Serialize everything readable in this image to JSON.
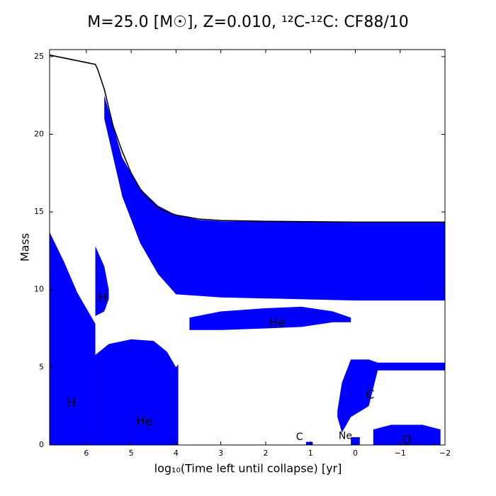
{
  "chart_data": {
    "type": "kippenhahn",
    "title": "M=25.0 [M☉], Z=0.010, ¹²C-¹²C: CF88/10",
    "xlabel": "log₁₀(Time left until collapse) [yr]",
    "ylabel": "Mass",
    "xlim": [
      6.82,
      -2
    ],
    "ylim": [
      0,
      25.45
    ],
    "xticks": [
      6,
      5,
      4,
      3,
      2,
      1,
      0,
      {
        "value": -1,
        "label": "−1"
      },
      {
        "value": -2,
        "label": "−2"
      }
    ],
    "yticks": [
      0,
      5,
      10,
      15,
      20,
      25
    ],
    "region_color": "#0000ff",
    "regions": [
      {
        "label": "H",
        "label_color": "#ffffff",
        "x": [
          6.82,
          6.5,
          6.2,
          5.8
        ],
        "upper": [
          13.7,
          11.8,
          9.8,
          7.8
        ],
        "lower": [
          0,
          0,
          0,
          0
        ]
      },
      {
        "label": "He",
        "label_color": "#ffffff",
        "x": [
          5.8,
          5.5,
          5.0,
          4.5,
          4.2,
          4.0,
          3.95
        ],
        "upper": [
          5.8,
          6.5,
          6.8,
          6.7,
          6.0,
          5.0,
          5.2
        ],
        "lower": [
          0,
          0,
          0,
          0,
          0,
          0,
          0
        ]
      },
      {
        "label": "H",
        "label_color": "#ffffff",
        "x": [
          5.8,
          5.6,
          5.5
        ],
        "upper": [
          12.8,
          11.5,
          10.0
        ],
        "lower": [
          8.3,
          8.6,
          9.4
        ]
      },
      {
        "x": [
          5.6,
          5.2,
          4.8,
          4.4,
          4.0,
          3.5,
          3.0,
          0,
          -2
        ],
        "upper": [
          22.5,
          18.5,
          16.5,
          15.4,
          14.8,
          14.5,
          14.4,
          14.35,
          14.35
        ],
        "lower": [
          21,
          16,
          13,
          11,
          9.7,
          9.6,
          9.5,
          9.3,
          9.3
        ]
      },
      {
        "label": "He",
        "label_color": "#ffffff",
        "x": [
          3.7,
          3.0,
          2.0,
          1.2,
          0.5,
          0.1
        ],
        "upper": [
          8.2,
          8.6,
          8.8,
          8.9,
          8.6,
          8.2
        ],
        "lower": [
          7.4,
          7.4,
          7.5,
          7.6,
          7.9,
          7.9
        ]
      },
      {
        "label": "C",
        "label_color": "#ffffff",
        "x": [
          0.4,
          0.3,
          0.1,
          -0.3,
          -0.5,
          -2
        ],
        "upper": [
          2.2,
          4.0,
          5.5,
          5.5,
          5.3,
          5.3
        ],
        "lower": [
          1.8,
          0.8,
          1.8,
          2.5,
          4.8,
          4.8
        ]
      },
      {
        "label": "O",
        "label_color": "#ffffff",
        "x": [
          -0.4,
          -0.8,
          -1.5,
          -1.9
        ],
        "upper": [
          1.0,
          1.3,
          1.3,
          1.0
        ],
        "lower": [
          0,
          0,
          0,
          0
        ]
      },
      {
        "label": "C",
        "label_color": "#ff0000",
        "x": [
          1.1,
          0.95
        ],
        "upper": [
          0.2,
          0.2
        ],
        "lower": [
          0,
          0
        ]
      },
      {
        "label": "Ne",
        "label_color": "#ff0000",
        "x": [
          0.1,
          -0.1
        ],
        "upper": [
          0.5,
          0.5
        ],
        "lower": [
          0,
          0
        ]
      }
    ],
    "series": [
      {
        "color": "#000000",
        "x": [
          6.82,
          5.8,
          5.75,
          5.6,
          5.4,
          5.2,
          5.0,
          4.8,
          4.6,
          4.4,
          4.2,
          4.0,
          3.5,
          3.0,
          2.0,
          0,
          -2
        ],
        "values": [
          25.1,
          24.5,
          24.2,
          22.9,
          20.5,
          18.9,
          17.5,
          16.5,
          15.8,
          15.3,
          15.0,
          14.8,
          14.55,
          14.45,
          14.4,
          14.35,
          14.35
        ]
      }
    ]
  }
}
